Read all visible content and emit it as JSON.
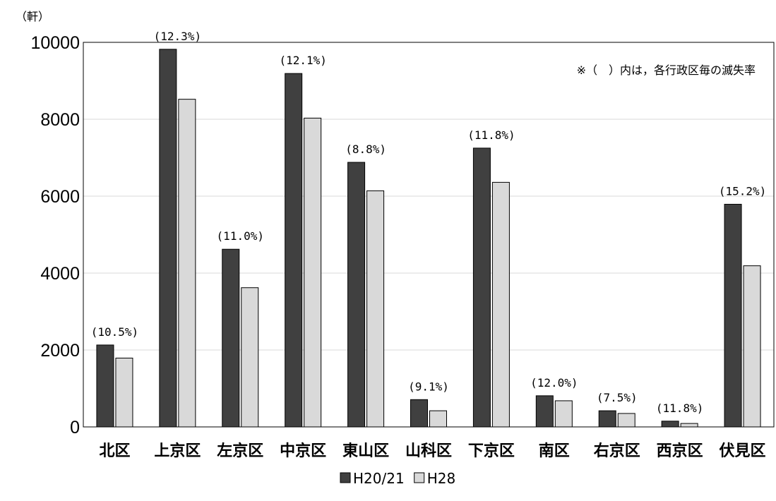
{
  "chart_data": {
    "type": "bar",
    "unit_label": "（軒）",
    "note": "※（　）内は，各行政区毎の滅失率",
    "categories": [
      "北区",
      "上京区",
      "左京区",
      "中京区",
      "東山区",
      "山科区",
      "下京区",
      "南区",
      "右京区",
      "西京区",
      "伏見区"
    ],
    "series": [
      {
        "name": "H20/21",
        "color": "#404040",
        "values": [
          2130,
          9820,
          4620,
          9190,
          6880,
          710,
          7250,
          810,
          420,
          150,
          5790
        ]
      },
      {
        "name": "H28",
        "color": "#d9d9d9",
        "values": [
          1790,
          8520,
          3620,
          8030,
          6140,
          420,
          6360,
          680,
          350,
          90,
          4190
        ]
      }
    ],
    "rate_labels": [
      "(10.5%)",
      "(12.3%)",
      "(11.0%)",
      "(12.1%)",
      "(8.8%)",
      "(9.1%)",
      "(11.8%)",
      "(12.0%)",
      "(7.5%)",
      "(11.8%)",
      "(15.2%)"
    ],
    "y_ticks": [
      "0",
      "2000",
      "4000",
      "6000",
      "8000",
      "10000"
    ],
    "ylim": [
      0,
      10000
    ],
    "grid": true,
    "legend_position": "bottom-center"
  }
}
